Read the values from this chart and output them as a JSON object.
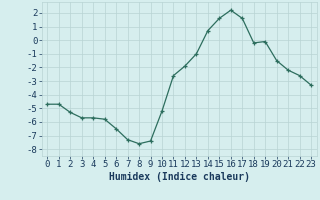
{
  "x": [
    0,
    1,
    2,
    3,
    4,
    5,
    6,
    7,
    8,
    9,
    10,
    11,
    12,
    13,
    14,
    15,
    16,
    17,
    18,
    19,
    20,
    21,
    22,
    23
  ],
  "y": [
    -4.7,
    -4.7,
    -5.3,
    -5.7,
    -5.7,
    -5.8,
    -6.5,
    -7.3,
    -7.6,
    -7.4,
    -5.2,
    -2.6,
    -1.9,
    -1.0,
    0.7,
    1.6,
    2.2,
    1.6,
    -0.2,
    -0.1,
    -1.5,
    -2.2,
    -2.6,
    -3.3
  ],
  "xlabel": "Humidex (Indice chaleur)",
  "xlim": [
    -0.5,
    23.5
  ],
  "ylim": [
    -8.5,
    2.8
  ],
  "yticks": [
    -8,
    -7,
    -6,
    -5,
    -4,
    -3,
    -2,
    -1,
    0,
    1,
    2
  ],
  "xticks": [
    0,
    1,
    2,
    3,
    4,
    5,
    6,
    7,
    8,
    9,
    10,
    11,
    12,
    13,
    14,
    15,
    16,
    17,
    18,
    19,
    20,
    21,
    22,
    23
  ],
  "line_color": "#2d6e5e",
  "marker": "+",
  "bg_color": "#d6eeee",
  "grid_color": "#b8d4d4",
  "tick_label_color": "#1a3a5c",
  "label_fontsize": 7,
  "tick_fontsize": 6.5
}
